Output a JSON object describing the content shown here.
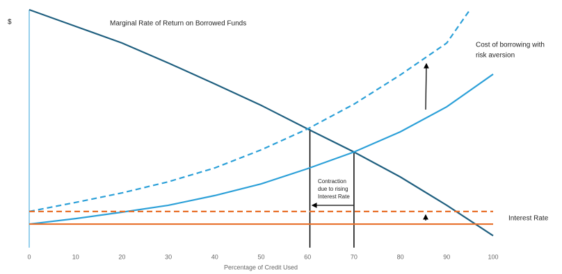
{
  "chart_data": {
    "type": "line",
    "y_label": "$",
    "x_label": "Percentage of Credit Used",
    "xlim": [
      0,
      100
    ],
    "xticks": [
      0,
      10,
      20,
      30,
      40,
      50,
      60,
      70,
      80,
      90,
      100
    ],
    "ylim": [
      0,
      100
    ],
    "series": [
      {
        "name": "Marginal Rate of Return on Borrowed Funds",
        "color": "#1f5f7f",
        "dashed": false,
        "x": [
          0,
          10,
          20,
          30,
          40,
          50,
          60,
          70,
          80,
          90,
          100
        ],
        "values": [
          100,
          93,
          86,
          77.6,
          68.8,
          59.8,
          49.9,
          40.2,
          29.7,
          17.8,
          5.0
        ]
      },
      {
        "color": "#2ca0d8",
        "dashed": false,
        "x": [
          0,
          10,
          20,
          30,
          40,
          50,
          60,
          70,
          80,
          90,
          100
        ],
        "values": [
          9.9,
          12.2,
          14.9,
          17.8,
          21.9,
          26.8,
          33.2,
          40.2,
          48.7,
          59.2,
          72.9
        ]
      },
      {
        "color": "#2ca0d8",
        "dashed": true,
        "x": [
          0,
          10,
          20,
          30,
          40,
          50,
          60,
          70,
          80,
          90,
          95
        ],
        "values": [
          15.2,
          19.0,
          23.0,
          27.7,
          33.5,
          41.1,
          49.9,
          60.3,
          72.6,
          86.0,
          100
        ]
      },
      {
        "name": "Interest Rate",
        "color": "#e8702a",
        "dashed": false,
        "x": [
          0,
          100
        ],
        "values": [
          9.9,
          9.9
        ]
      },
      {
        "color": "#e8702a",
        "dashed": true,
        "x": [
          0,
          100
        ],
        "values": [
          15.2,
          15.2
        ]
      }
    ],
    "droplines": [
      {
        "x": 60.5,
        "y": 49.9
      },
      {
        "x": 70,
        "y": 40.2
      }
    ],
    "annotations": [
      {
        "lines": [
          "Cost of borrowing with",
          "risk aversion"
        ]
      },
      {
        "lines": [
          "Contraction",
          "due to rising",
          "Interest Rate"
        ]
      }
    ]
  }
}
